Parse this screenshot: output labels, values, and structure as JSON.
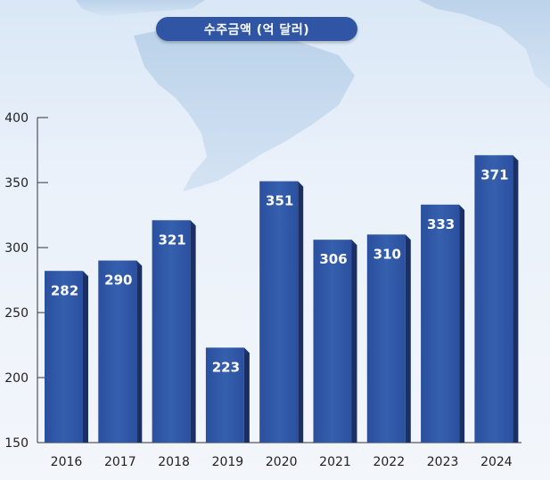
{
  "chart_data": {
    "type": "bar",
    "title": "수주금액 (억 달러)",
    "categories": [
      "2016",
      "2017",
      "2018",
      "2019",
      "2020",
      "2021",
      "2022",
      "2023",
      "2024"
    ],
    "values": [
      282,
      290,
      321,
      223,
      351,
      306,
      310,
      333,
      371
    ],
    "data_labels": [
      "282",
      "290",
      "321",
      "223",
      "351",
      "306",
      "310",
      "333",
      "371"
    ],
    "ylim": [
      150,
      400
    ],
    "yticks": [
      150,
      200,
      250,
      300,
      350,
      400
    ],
    "ytick_labels": [
      "150",
      "200",
      "250",
      "300",
      "350",
      "400"
    ],
    "xlabel": "",
    "ylabel": "",
    "grid": false,
    "bar_color": "#2f55a4",
    "bar_side_color": "#1b2f63",
    "label_color": "#ffffff"
  }
}
